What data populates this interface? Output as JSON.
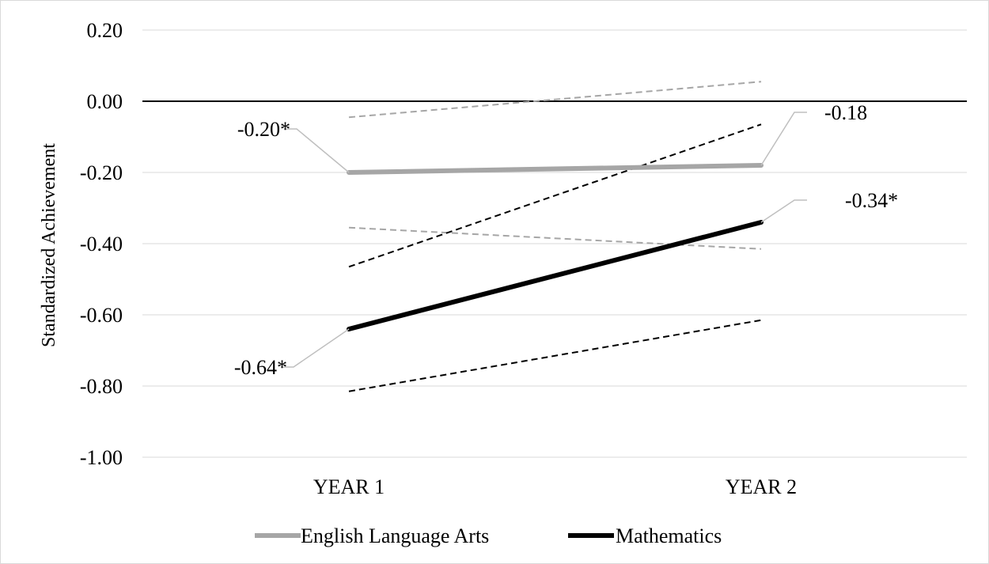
{
  "chart_data": {
    "type": "line",
    "title": "",
    "xlabel": "",
    "ylabel": "Standardized Achievement",
    "categories": [
      "YEAR 1",
      "YEAR 2"
    ],
    "ylim": [
      -1.0,
      0.2
    ],
    "yticks": [
      0.2,
      0.0,
      -0.2,
      -0.4,
      -0.6,
      -0.8,
      -1.0
    ],
    "ytick_labels": [
      "0.20",
      "0.00",
      "-0.20",
      "-0.40",
      "-0.60",
      "-0.80",
      "-1.00"
    ],
    "grid": true,
    "zero_line": true,
    "legend_position": "bottom",
    "series": [
      {
        "name": "English Language Arts",
        "color": "#a6a6a6",
        "values": [
          -0.2,
          -0.18
        ],
        "data_labels": [
          "-0.20*",
          "-0.18"
        ],
        "ci_upper": [
          -0.045,
          0.055
        ],
        "ci_lower": [
          -0.355,
          -0.415
        ]
      },
      {
        "name": "Mathematics",
        "color": "#000000",
        "values": [
          -0.64,
          -0.34
        ],
        "data_labels": [
          "-0.64*",
          "-0.34*"
        ],
        "ci_upper": [
          -0.465,
          -0.065
        ],
        "ci_lower": [
          -0.815,
          -0.615
        ]
      }
    ]
  }
}
